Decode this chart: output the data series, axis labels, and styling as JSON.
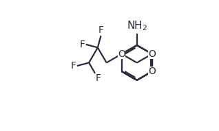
{
  "bg_color": "#ffffff",
  "line_color": "#2b2b3b",
  "bond_width": 1.6,
  "font_size": 10,
  "figsize": [
    3.18,
    1.91
  ],
  "dpi": 100,
  "xlim": [
    0.0,
    1.0
  ],
  "ylim": [
    0.05,
    0.98
  ]
}
